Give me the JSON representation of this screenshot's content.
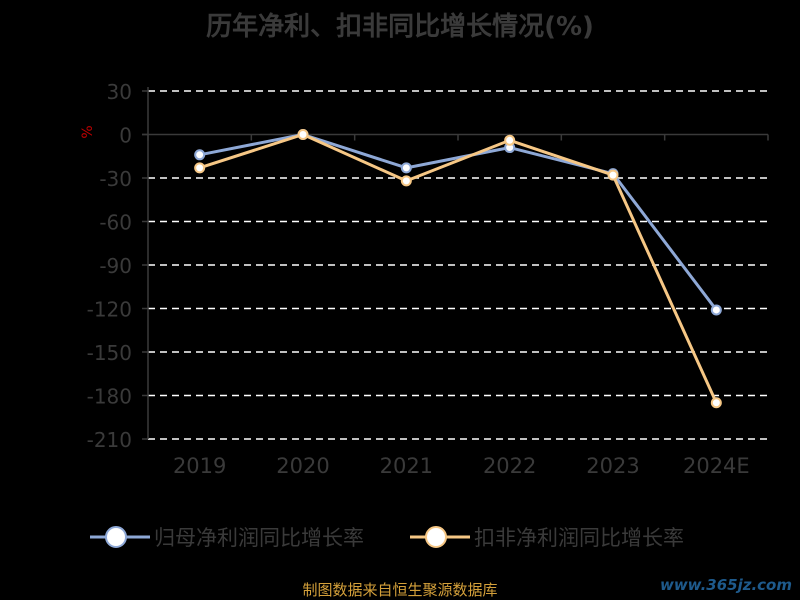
{
  "chart_data": {
    "type": "line",
    "title": "历年净利、扣非同比增长情况(%)",
    "ylabel": "%",
    "categories": [
      "2019",
      "2020",
      "2021",
      "2022",
      "2023",
      "2024E"
    ],
    "yticks": [
      "30",
      "0",
      "-30",
      "-60",
      "-90",
      "-120",
      "-150",
      "-180",
      "-210"
    ],
    "ylim": [
      -210,
      30
    ],
    "grid": true,
    "legend_position": "bottom",
    "series": [
      {
        "name": "归母净利润同比增长率",
        "color": "#8ea8d6",
        "values": [
          -14,
          0,
          -23,
          -9,
          -27,
          -121
        ]
      },
      {
        "name": "扣非净利润同比增长率",
        "color": "#f6c785",
        "values": [
          -23,
          0,
          -32,
          -4,
          -28,
          -185
        ]
      }
    ]
  },
  "source": "制图数据来自恒生聚源数据库",
  "watermark": "www.365jz.com"
}
